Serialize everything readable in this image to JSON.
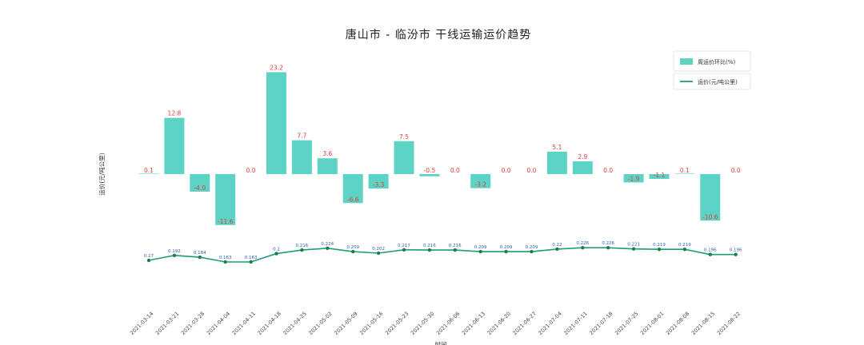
{
  "chart_data": {
    "type": "bar+line",
    "title": "唐山市 - 临汾市 干线运输运价趋势",
    "xlabel": "时间",
    "ylabel": "运价(元/吨公里)",
    "categories": [
      "2021-03-14",
      "2021-03-21",
      "2021-03-28",
      "2021-04-04",
      "2021-04-11",
      "2021-04-18",
      "2021-04-25",
      "2021-05-02",
      "2021-05-09",
      "2021-05-16",
      "2021-05-23",
      "2021-05-30",
      "2021-06-06",
      "2021-06-13",
      "2021-06-20",
      "2021-06-27",
      "2021-07-04",
      "2021-07-11",
      "2021-07-18",
      "2021-07-25",
      "2021-08-01",
      "2021-08-08",
      "2021-08-15",
      "2021-08-22"
    ],
    "series": [
      {
        "name": "周运价环比(%)",
        "type": "bar",
        "color": "#5cd3c4",
        "values": [
          0.1,
          12.8,
          -4.0,
          -11.6,
          0.0,
          23.2,
          7.7,
          3.6,
          -6.6,
          -3.3,
          7.5,
          -0.5,
          0.0,
          -3.2,
          0.0,
          0.0,
          5.1,
          2.9,
          0.0,
          -1.9,
          -1.1,
          0.1,
          -10.6,
          0.0
        ],
        "labels": [
          "0.1",
          "12.8",
          "-4.0",
          "-11.6",
          "0.0",
          "23.2",
          "7.7",
          "3.6",
          "-6.6",
          "-3.3",
          "7.5",
          "-0.5",
          "0.0",
          "-3.2",
          "0.0",
          "0.0",
          "5.1",
          "2.9",
          "0.0",
          "-1.9",
          "-1.1",
          "0.1",
          "-10.6",
          "0.0"
        ]
      },
      {
        "name": "运价(元/吨公里)",
        "type": "line",
        "color": "#1e9c7c",
        "values": [
          0.17,
          0.192,
          0.184,
          0.163,
          0.163,
          0.2,
          0.216,
          0.224,
          0.209,
          0.202,
          0.217,
          0.216,
          0.216,
          0.209,
          0.209,
          0.209,
          0.22,
          0.226,
          0.226,
          0.221,
          0.219,
          0.219,
          0.196,
          0.196
        ],
        "labels": [
          "0.17",
          "0.192",
          "0.184",
          "0.163",
          "0.163",
          "0.2",
          "0.216",
          "0.224",
          "0.209",
          "0.202",
          "0.217",
          "0.216",
          "0.216",
          "0.209",
          "0.209",
          "0.209",
          "0.22",
          "0.226",
          "0.226",
          "0.221",
          "0.219",
          "0.219",
          "0.196",
          "0.196"
        ]
      }
    ],
    "legend_position": "top-right",
    "grid": false
  }
}
